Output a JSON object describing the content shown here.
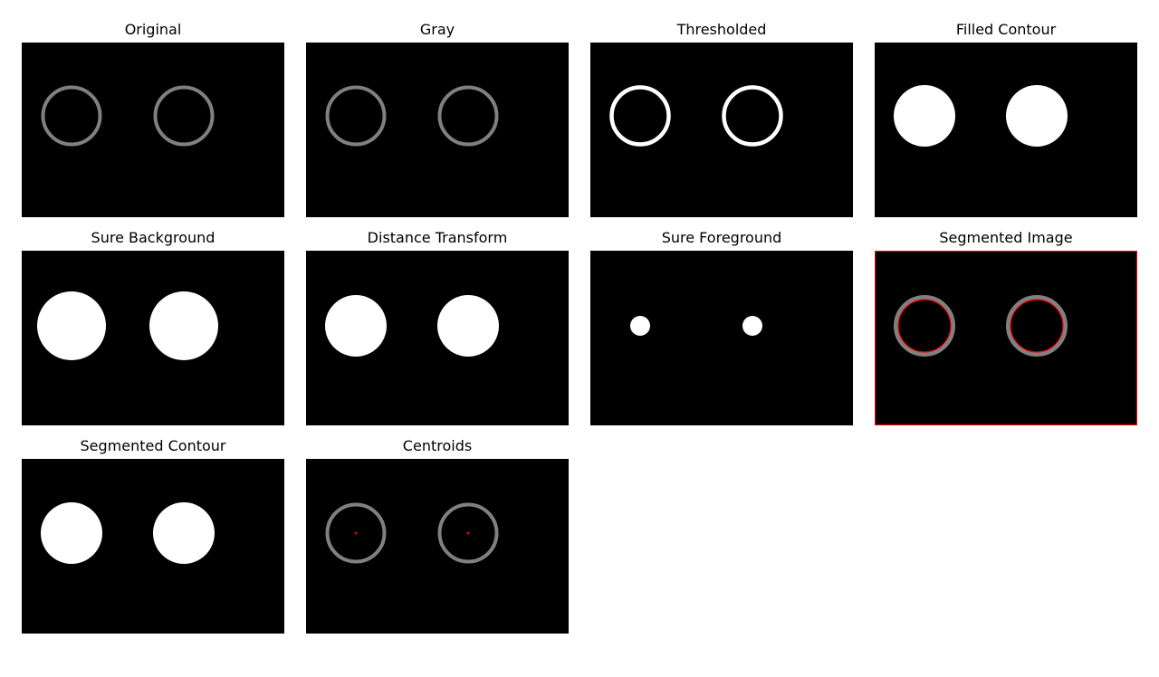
{
  "figure": {
    "background": "#ffffff",
    "image_background": "#000000",
    "panels": [
      {
        "title": "Original"
      },
      {
        "title": "Gray"
      },
      {
        "title": "Thresholded"
      },
      {
        "title": "Filled Contour"
      },
      {
        "title": "Sure Background"
      },
      {
        "title": "Distance Transform"
      },
      {
        "title": "Sure Foreground"
      },
      {
        "title": "Segmented Image"
      },
      {
        "title": "Segmented Contour"
      },
      {
        "title": "Centroids"
      }
    ]
  },
  "colors": {
    "ring_gray": "#808080",
    "white": "#ffffff",
    "marker_red": "#ff0000"
  }
}
